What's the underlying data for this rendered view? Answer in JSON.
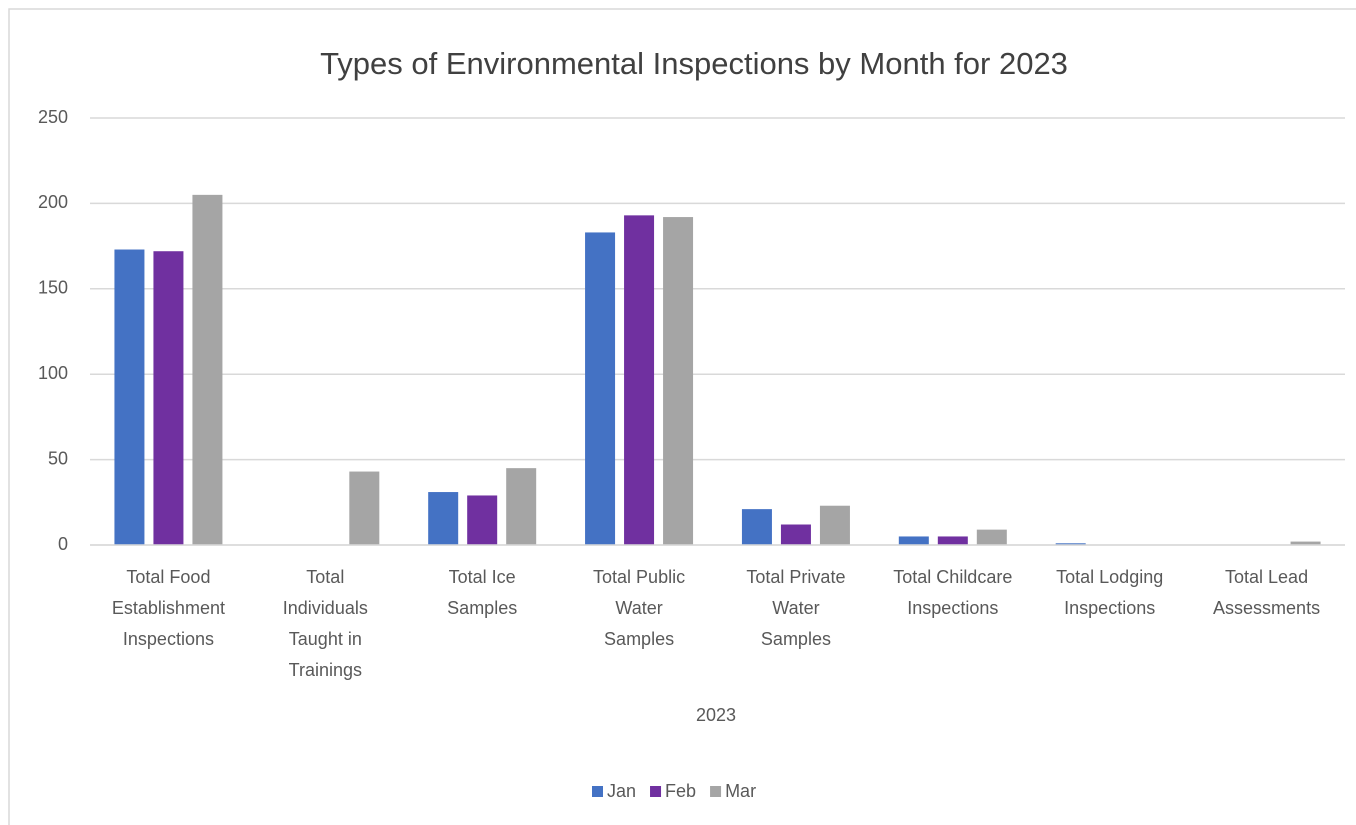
{
  "chart_data": {
    "type": "bar",
    "title": "Types of Environmental Inspections by Month for 2023",
    "x_label": "2023",
    "categories": [
      [
        "Total Food",
        "Establishment",
        "Inspections"
      ],
      [
        "Total",
        "Individuals",
        "Taught in",
        "Trainings"
      ],
      [
        "Total Ice",
        "Samples"
      ],
      [
        "Total Public",
        "Water",
        "Samples"
      ],
      [
        "Total Private",
        "Water",
        "Samples"
      ],
      [
        "Total Childcare",
        "Inspections"
      ],
      [
        "Total Lodging",
        "Inspections"
      ],
      [
        "Total Lead",
        "Assessments"
      ]
    ],
    "series": [
      {
        "name": "Jan",
        "color": "#4472c4",
        "values": [
          173,
          0,
          31,
          183,
          21,
          5,
          1,
          0
        ]
      },
      {
        "name": "Feb",
        "color": "#7030a0",
        "values": [
          172,
          0,
          29,
          193,
          12,
          5,
          0,
          0
        ]
      },
      {
        "name": "Mar",
        "color": "#a5a5a5",
        "values": [
          205,
          43,
          45,
          192,
          23,
          9,
          0,
          2
        ]
      }
    ],
    "ylim": [
      0,
      250
    ],
    "yticks": [
      0,
      50,
      100,
      150,
      200,
      250
    ],
    "grid": true,
    "legend": "bottom"
  }
}
